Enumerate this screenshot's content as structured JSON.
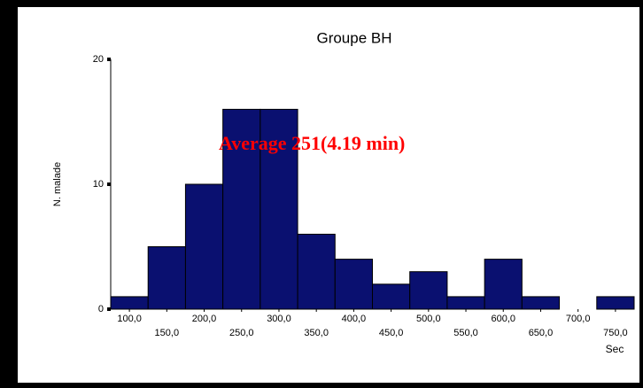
{
  "chart_data": {
    "type": "histogram",
    "title": "Groupe BH",
    "x_label": "Sec",
    "y_label": "N. malade",
    "annotation": "Average 251(4.19 min)",
    "bins": [
      75,
      125,
      175,
      225,
      275,
      325,
      375,
      425,
      475,
      525,
      575,
      625,
      675,
      725,
      775
    ],
    "values": [
      1,
      5,
      10,
      16,
      16,
      6,
      4,
      2,
      3,
      1,
      4,
      1,
      0,
      1
    ],
    "color": "#0a1070",
    "xlim": [
      75,
      775
    ],
    "xticks": [
      {
        "value": 100,
        "label": "100,0"
      },
      {
        "value": 150,
        "label": "150,0"
      },
      {
        "value": 200,
        "label": "200,0"
      },
      {
        "value": 250,
        "label": "250,0"
      },
      {
        "value": 300,
        "label": "300,0"
      },
      {
        "value": 350,
        "label": "350,0"
      },
      {
        "value": 400,
        "label": "400,0"
      },
      {
        "value": 450,
        "label": "450,0"
      },
      {
        "value": 500,
        "label": "500,0"
      },
      {
        "value": 550,
        "label": "550,0"
      },
      {
        "value": 600,
        "label": "600,0"
      },
      {
        "value": 650,
        "label": "650,0"
      },
      {
        "value": 700,
        "label": "700,0"
      },
      {
        "value": 750,
        "label": "750,0"
      }
    ],
    "ylim": [
      0,
      20
    ],
    "yticks": [
      0,
      10,
      20
    ]
  }
}
